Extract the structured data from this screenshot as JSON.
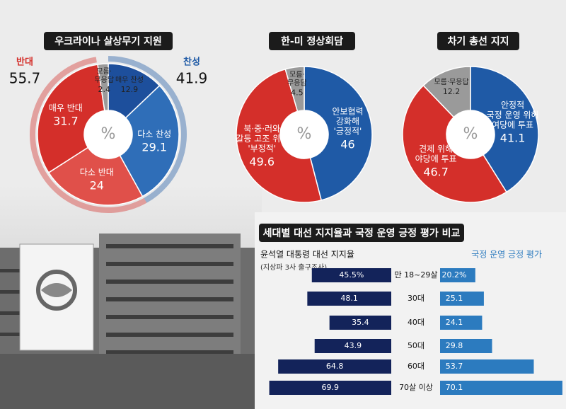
{
  "chart_data": [
    {
      "type": "pie",
      "title": "우크라이나 살상무기 지원",
      "center_label": "%",
      "categories": [
        [
          "매우 찬성"
        ],
        [
          "다소 찬성"
        ],
        [
          "다소 반대"
        ],
        [
          "매우 반대"
        ],
        [
          "모름·",
          "무응답"
        ]
      ],
      "values": [
        12.9,
        29.1,
        24,
        31.7,
        2.4
      ],
      "colors": [
        "#1d4f9c",
        "#2f6eb8",
        "#e0504a",
        "#d42f2a",
        "#9a9a9a"
      ],
      "groups": [
        {
          "name": "찬성",
          "value": 41.9,
          "color": "#1f5aa6"
        },
        {
          "name": "반대",
          "value": 55.7,
          "color": "#d42f2a"
        }
      ]
    },
    {
      "type": "pie",
      "title": "한-미 정상회담",
      "center_label": "%",
      "categories": [
        [
          "안보협력",
          "강화해",
          "'긍정적'"
        ],
        [
          "북·중·러와",
          "갈등 고조 위험",
          "'부정적'"
        ],
        [
          "모름·",
          "무응답"
        ]
      ],
      "values": [
        46,
        49.6,
        4.5
      ],
      "colors": [
        "#1f5aa6",
        "#d42f2a",
        "#9a9a9a"
      ]
    },
    {
      "type": "pie",
      "title": "차기 총선 지지",
      "center_label": "%",
      "categories": [
        [
          "안정적",
          "국정 운영 위해",
          "여당에 투표"
        ],
        [
          "견제 위해",
          "야당에 투표"
        ],
        [
          "모름·무응답"
        ]
      ],
      "values": [
        41.1,
        46.7,
        12.2
      ],
      "colors": [
        "#1f5aa6",
        "#d42f2a",
        "#9a9a9a"
      ]
    },
    {
      "type": "butterfly",
      "title": "세대별 대선 지지율과 국정 운영 긍정 평가 비교",
      "note": "(지상파 3사 출구조사)",
      "categories": [
        "만 18~29살",
        "30대",
        "40대",
        "50대",
        "60대",
        "70살 이상"
      ],
      "xlim": [
        0,
        75
      ],
      "series": [
        {
          "name": "윤석열 대통령 대선 지지율",
          "color": "#13235a",
          "values": [
            45.5,
            48.1,
            35.4,
            43.9,
            64.8,
            69.9
          ],
          "value_labels": [
            "45.5%",
            "48.1",
            "35.4",
            "43.9",
            "64.8",
            "69.9"
          ]
        },
        {
          "name": "국정 운영 긍정 평가",
          "color": "#2c7bbf",
          "values": [
            20.2,
            25.1,
            24.1,
            29.8,
            53.7,
            70.1
          ],
          "value_labels": [
            "20.2%",
            "25.1",
            "24.1",
            "29.8",
            "53.7",
            "70.1"
          ]
        }
      ]
    }
  ]
}
